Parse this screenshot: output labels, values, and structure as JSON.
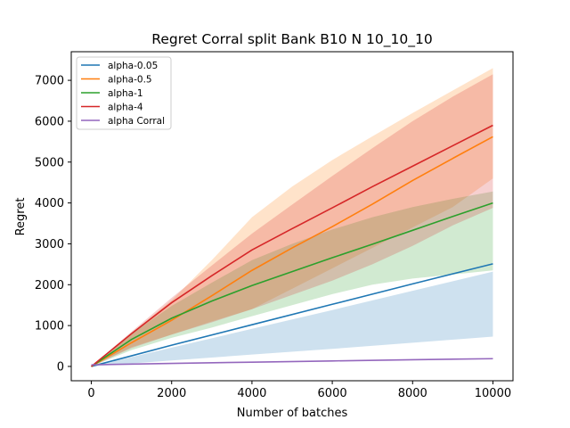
{
  "chart_data": {
    "type": "line",
    "title": "Regret Corral split Bank B10 N 10_10_10",
    "xlabel": "Number of batches",
    "ylabel": "Regret",
    "xlim": [
      -500,
      10500
    ],
    "ylim": [
      -350,
      7700
    ],
    "xticks": [
      0,
      2000,
      4000,
      6000,
      8000,
      10000
    ],
    "yticks": [
      0,
      1000,
      2000,
      3000,
      4000,
      5000,
      6000,
      7000
    ],
    "grid": false,
    "legend_position": "top-left",
    "series": [
      {
        "name": "alpha-0.05",
        "color": "#1f77b4",
        "x": [
          0,
          2000,
          4000,
          6000,
          8000,
          10000
        ],
        "y": [
          0,
          520,
          1020,
          1520,
          2020,
          2510
        ],
        "y_upper": [
          0,
          460,
          920,
          1380,
          1850,
          2320
        ],
        "y_lower": [
          0,
          145,
          290,
          430,
          580,
          730
        ]
      },
      {
        "name": "alpha-0.5",
        "color": "#ff7f0e",
        "x": [
          0,
          1000,
          2000,
          3000,
          4000,
          5000,
          6000,
          7000,
          8000,
          9000,
          10000
        ],
        "y": [
          0,
          580,
          1130,
          1730,
          2350,
          2900,
          3420,
          3970,
          4550,
          5090,
          5620
        ],
        "y_upper": [
          0,
          820,
          1620,
          2600,
          3650,
          4400,
          5050,
          5630,
          6200,
          6750,
          7300
        ],
        "y_lower": [
          0,
          470,
          780,
          1100,
          1400,
          1900,
          2400,
          2900,
          3400,
          3900,
          4600
        ]
      },
      {
        "name": "alpha-1",
        "color": "#2ca02c",
        "x": [
          0,
          1000,
          2000,
          3000,
          4000,
          5000,
          6000,
          7000,
          8000,
          9000,
          10000
        ],
        "y": [
          0,
          660,
          1180,
          1600,
          1980,
          2320,
          2660,
          2990,
          3330,
          3670,
          4000
        ],
        "y_upper": [
          0,
          800,
          1480,
          2050,
          2600,
          3000,
          3350,
          3650,
          3900,
          4100,
          4280
        ],
        "y_lower": [
          0,
          400,
          700,
          950,
          1230,
          1500,
          1770,
          2000,
          2150,
          2250,
          2350
        ]
      },
      {
        "name": "alpha-4",
        "color": "#d62728",
        "x": [
          0,
          1000,
          2000,
          3000,
          4000,
          5000,
          6000,
          7000,
          8000,
          9000,
          10000
        ],
        "y": [
          0,
          800,
          1560,
          2220,
          2850,
          3370,
          3880,
          4400,
          4900,
          5400,
          5900
        ],
        "y_upper": [
          0,
          850,
          1680,
          2470,
          3250,
          3960,
          4660,
          5340,
          6000,
          6600,
          7150
        ],
        "y_lower": [
          0,
          450,
          780,
          1080,
          1400,
          1750,
          2100,
          2500,
          2950,
          3450,
          3880
        ]
      },
      {
        "name": "alpha Corral",
        "color": "#9467bd",
        "x": [
          0,
          2000,
          4000,
          6000,
          8000,
          10000
        ],
        "y": [
          40,
          75,
          105,
          135,
          165,
          190
        ]
      }
    ]
  }
}
